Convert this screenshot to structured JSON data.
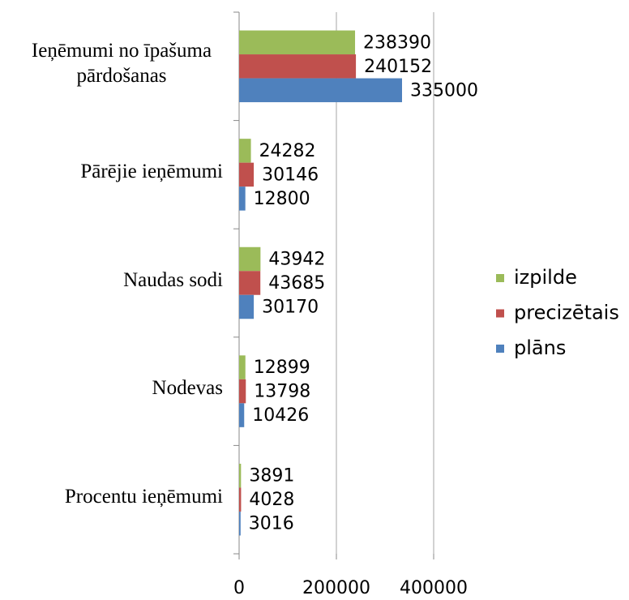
{
  "chart_data": {
    "type": "bar",
    "orientation": "horizontal",
    "categories": [
      "Ieņēmumi no īpašuma pārdošanas",
      "Pārējie ieņēmumi",
      "Naudas sodi",
      "Nodevas",
      "Procentu ieņēmumi"
    ],
    "series": [
      {
        "name": "izpilde",
        "color": "#9bbb59",
        "values": [
          238390,
          24282,
          43942,
          12899,
          3891
        ]
      },
      {
        "name": "precizētais",
        "color": "#c0504d",
        "values": [
          240152,
          30146,
          43685,
          13798,
          4028
        ]
      },
      {
        "name": "plāns",
        "color": "#4f81bd",
        "values": [
          335000,
          12800,
          30170,
          10426,
          3016
        ]
      }
    ],
    "xlim": [
      0,
      400000
    ],
    "xticks": [
      0,
      200000,
      400000
    ],
    "grid": true,
    "legend": "right"
  }
}
